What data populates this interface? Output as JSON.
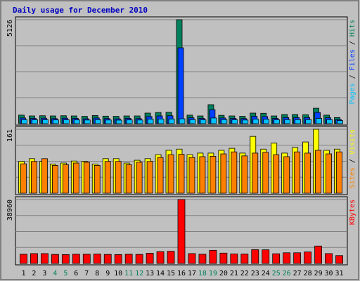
{
  "chart_data": [
    {
      "type": "bar",
      "title": "Daily usage for December 2010",
      "legend_separator": " / ",
      "ylim": [
        0,
        5126
      ],
      "yticks": [
        5126
      ],
      "series": [
        {
          "name": "Hits",
          "color": "#00805c",
          "values": [
            420,
            380,
            390,
            380,
            390,
            380,
            360,
            400,
            370,
            360,
            380,
            380,
            520,
            550,
            560,
            5126,
            420,
            380,
            935,
            410,
            380,
            360,
            520,
            510,
            380,
            450,
            450,
            440,
            760,
            420,
            300
          ]
        },
        {
          "name": "Files",
          "color": "#0040ff",
          "values": [
            280,
            260,
            270,
            250,
            270,
            260,
            240,
            280,
            250,
            240,
            260,
            250,
            350,
            380,
            390,
            3740,
            290,
            260,
            690,
            280,
            260,
            250,
            360,
            350,
            260,
            300,
            300,
            300,
            550,
            290,
            200
          ]
        },
        {
          "name": "Pages",
          "color": "#00c0ff",
          "values": [
            200,
            190,
            195,
            185,
            190,
            185,
            180,
            200,
            180,
            175,
            185,
            180,
            220,
            230,
            230,
            240,
            200,
            190,
            280,
            200,
            190,
            180,
            220,
            215,
            190,
            200,
            200,
            200,
            260,
            200,
            150
          ]
        }
      ]
    },
    {
      "type": "bar",
      "legend_separator": " / ",
      "ylim": [
        0,
        161
      ],
      "yticks": [
        161
      ],
      "series": [
        {
          "name": "Visits",
          "color": "#ffff00",
          "values": [
            80,
            87,
            80,
            73,
            76,
            81,
            80,
            73,
            87,
            87,
            76,
            83,
            87,
            97,
            108,
            111,
            97,
            101,
            101,
            108,
            113,
            101,
            143,
            111,
            126,
            101,
            115,
            129,
            161,
            108,
            111
          ]
        },
        {
          "name": "Sites",
          "color": "#ff8000",
          "values": [
            74,
            80,
            87,
            70,
            72,
            76,
            78,
            70,
            80,
            80,
            72,
            78,
            80,
            90,
            97,
            98,
            90,
            92,
            93,
            99,
            104,
            94,
            101,
            103,
            97,
            92,
            104,
            101,
            108,
            99,
            104
          ]
        }
      ]
    },
    {
      "type": "bar",
      "ylim": [
        0,
        38960
      ],
      "yticks": [
        38960
      ],
      "categories": [
        "1",
        "2",
        "3",
        "4",
        "5",
        "6",
        "7",
        "8",
        "9",
        "10",
        "11",
        "12",
        "13",
        "14",
        "15",
        "16",
        "17",
        "18",
        "19",
        "20",
        "21",
        "22",
        "23",
        "24",
        "25",
        "26",
        "27",
        "28",
        "29",
        "30",
        "31"
      ],
      "category_colors": [
        "#000000",
        "#000000",
        "#000000",
        "#00805c",
        "#00805c",
        "#000000",
        "#000000",
        "#000000",
        "#000000",
        "#000000",
        "#00805c",
        "#00805c",
        "#000000",
        "#000000",
        "#000000",
        "#000000",
        "#000000",
        "#00805c",
        "#00805c",
        "#000000",
        "#000000",
        "#000000",
        "#000000",
        "#000000",
        "#00805c",
        "#00805c",
        "#000000",
        "#000000",
        "#000000",
        "#000000",
        "#000000"
      ],
      "series": [
        {
          "name": "KBytes",
          "color": "#ff0000",
          "values": [
            5600,
            6000,
            6000,
            5500,
            5400,
            5600,
            5600,
            5700,
            5500,
            5400,
            5600,
            5500,
            6200,
            7200,
            7400,
            38960,
            6000,
            5600,
            8000,
            6300,
            5800,
            5700,
            8400,
            8300,
            5900,
            6500,
            6500,
            7000,
            10600,
            6000,
            4800
          ]
        }
      ]
    }
  ]
}
